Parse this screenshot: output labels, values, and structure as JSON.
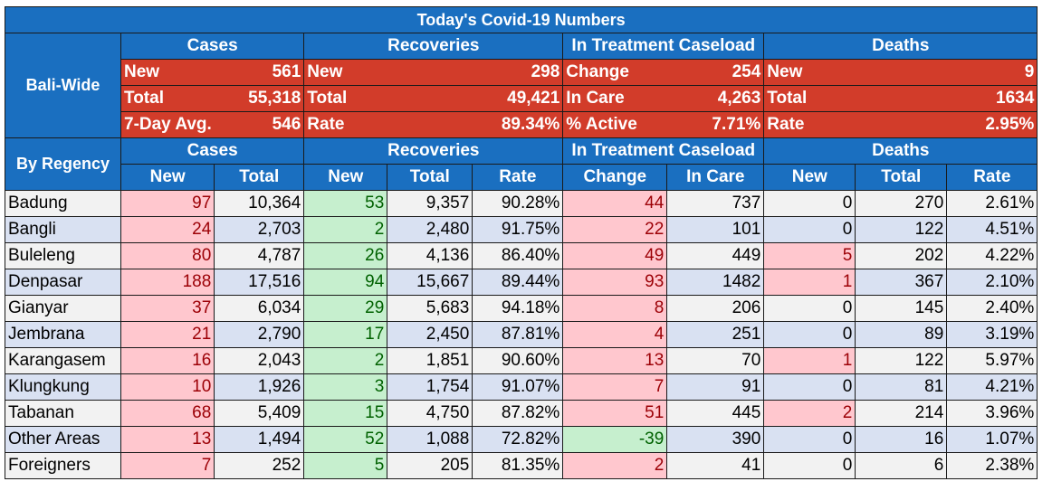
{
  "title": "Today's Covid-19 Numbers",
  "colors": {
    "header_blue": "#1a6fc0",
    "summary_red": "#d23c2a",
    "bad_fill": "#ffc7ce",
    "bad_text": "#9c0006",
    "good_fill": "#c6efce",
    "good_text": "#006100",
    "row_gray": "#f2f2f2",
    "row_blue": "#d9e1f2"
  },
  "bali_wide": {
    "label": "Bali-Wide",
    "groups": [
      "Cases",
      "Recoveries",
      "In Treatment Caseload",
      "Deaths"
    ],
    "cases": [
      {
        "label": "New",
        "value": "561"
      },
      {
        "label": "Total",
        "value": "55,318"
      },
      {
        "label": "7-Day Avg.",
        "value": "546"
      }
    ],
    "recoveries": [
      {
        "label": "New",
        "value": "298"
      },
      {
        "label": "Total",
        "value": "49,421"
      },
      {
        "label": "Rate",
        "value": "89.34%"
      }
    ],
    "treatment": [
      {
        "label": "Change",
        "value": "254"
      },
      {
        "label": "In Care",
        "value": "4,263"
      },
      {
        "label": "% Active",
        "value": "7.71%"
      }
    ],
    "deaths": [
      {
        "label": "New",
        "value": "9"
      },
      {
        "label": "Total",
        "value": "1634"
      },
      {
        "label": "Rate",
        "value": "2.95%"
      }
    ]
  },
  "by_regency": {
    "label": "By Regency",
    "groups": [
      "Cases",
      "Recoveries",
      "In Treatment Caseload",
      "Deaths"
    ],
    "subheaders": [
      "New",
      "Total",
      "New",
      "Total",
      "Rate",
      "Change",
      "In Care",
      "New",
      "Total",
      "Rate"
    ],
    "rows": [
      {
        "name": "Badung",
        "cells": [
          "97",
          "10,364",
          "53",
          "9,357",
          "90.28%",
          "44",
          "737",
          "0",
          "270",
          "2.61%"
        ],
        "deaths_new_bad": false,
        "change_good": false
      },
      {
        "name": "Bangli",
        "cells": [
          "24",
          "2,703",
          "2",
          "2,480",
          "91.75%",
          "22",
          "101",
          "0",
          "122",
          "4.51%"
        ],
        "deaths_new_bad": false,
        "change_good": false
      },
      {
        "name": "Buleleng",
        "cells": [
          "80",
          "4,787",
          "26",
          "4,136",
          "86.40%",
          "49",
          "449",
          "5",
          "202",
          "4.22%"
        ],
        "deaths_new_bad": true,
        "change_good": false
      },
      {
        "name": "Denpasar",
        "cells": [
          "188",
          "17,516",
          "94",
          "15,667",
          "89.44%",
          "93",
          "1482",
          "1",
          "367",
          "2.10%"
        ],
        "deaths_new_bad": true,
        "change_good": false
      },
      {
        "name": "Gianyar",
        "cells": [
          "37",
          "6,034",
          "29",
          "5,683",
          "94.18%",
          "8",
          "206",
          "0",
          "145",
          "2.40%"
        ],
        "deaths_new_bad": false,
        "change_good": false
      },
      {
        "name": "Jembrana",
        "cells": [
          "21",
          "2,790",
          "17",
          "2,450",
          "87.81%",
          "4",
          "251",
          "0",
          "89",
          "3.19%"
        ],
        "deaths_new_bad": false,
        "change_good": false
      },
      {
        "name": "Karangasem",
        "cells": [
          "16",
          "2,043",
          "2",
          "1,851",
          "90.60%",
          "13",
          "70",
          "1",
          "122",
          "5.97%"
        ],
        "deaths_new_bad": true,
        "change_good": false
      },
      {
        "name": "Klungkung",
        "cells": [
          "10",
          "1,926",
          "3",
          "1,754",
          "91.07%",
          "7",
          "91",
          "0",
          "81",
          "4.21%"
        ],
        "deaths_new_bad": false,
        "change_good": false
      },
      {
        "name": "Tabanan",
        "cells": [
          "68",
          "5,409",
          "15",
          "4,750",
          "87.82%",
          "51",
          "445",
          "2",
          "214",
          "3.96%"
        ],
        "deaths_new_bad": true,
        "change_good": false
      },
      {
        "name": "Other Areas",
        "cells": [
          "13",
          "1,494",
          "52",
          "1,088",
          "72.82%",
          "-39",
          "390",
          "0",
          "16",
          "1.07%"
        ],
        "deaths_new_bad": false,
        "change_good": true
      },
      {
        "name": "Foreigners",
        "cells": [
          "7",
          "252",
          "5",
          "205",
          "81.35%",
          "2",
          "41",
          "0",
          "6",
          "2.38%"
        ],
        "deaths_new_bad": false,
        "change_good": false
      }
    ]
  }
}
